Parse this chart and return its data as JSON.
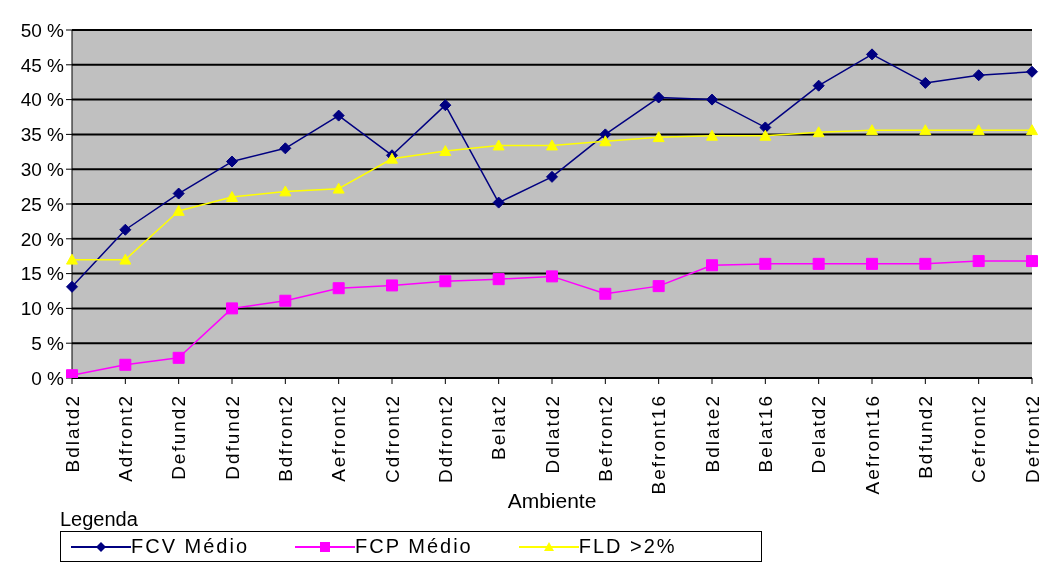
{
  "chart_data": {
    "type": "line",
    "xlabel": "Ambiente",
    "legend_title": "Legenda",
    "legend": "bottom",
    "grid": "y",
    "categories": [
      "Bdlatd2",
      "Adfront2",
      "Defund2",
      "Ddfund2",
      "Bdfront2",
      "Aefront2",
      "Cdfront2",
      "Ddfront2",
      "Belat2",
      "Ddlatd2",
      "Befront2",
      "Befront16",
      "Bdlate2",
      "Belat16",
      "Delatd2",
      "Aefront16",
      "Bdfund2",
      "Cefront2",
      "Defront2"
    ],
    "ylim": [
      0,
      50
    ],
    "yticks": [
      {
        "value": 0,
        "label": "0 %"
      },
      {
        "value": 5,
        "label": "5 %"
      },
      {
        "value": 10,
        "label": "10 %"
      },
      {
        "value": 15,
        "label": "15 %"
      },
      {
        "value": 20,
        "label": "20 %"
      },
      {
        "value": 25,
        "label": "25 %"
      },
      {
        "value": 30,
        "label": "30 %"
      },
      {
        "value": 35,
        "label": "35 %"
      },
      {
        "value": 40,
        "label": "40 %"
      },
      {
        "value": 45,
        "label": "45 %"
      },
      {
        "value": 50,
        "label": "50 %"
      }
    ],
    "series": [
      {
        "name": "FCV Médio",
        "color": "#000080",
        "marker": "diamond",
        "values": [
          13.1,
          21.3,
          26.5,
          31.1,
          33,
          37.7,
          32,
          39.2,
          25.2,
          28.9,
          35,
          40.3,
          40,
          36,
          42,
          46.5,
          42.4,
          43.5,
          44
        ]
      },
      {
        "name": "FCP Médio",
        "color": "#ff00ff",
        "marker": "square",
        "values": [
          0.4,
          1.9,
          2.9,
          10,
          11.1,
          12.9,
          13.3,
          13.9,
          14.2,
          14.6,
          12.1,
          13.2,
          16.2,
          16.4,
          16.4,
          16.4,
          16.4,
          16.8,
          16.8
        ]
      },
      {
        "name": "FLD >2%",
        "color": "#ffff00",
        "marker": "triangle",
        "values": [
          17,
          17,
          24,
          26,
          26.8,
          27.2,
          31.5,
          32.6,
          33.4,
          33.4,
          34,
          34.6,
          34.8,
          34.8,
          35.3,
          35.6,
          35.6,
          35.6,
          35.6
        ]
      }
    ]
  }
}
